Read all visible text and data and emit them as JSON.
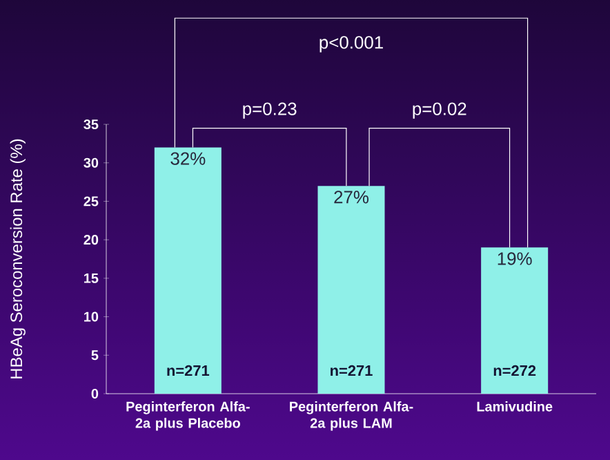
{
  "chart_data": {
    "type": "bar",
    "ylabel": "HBeAg Seroconversion Rate (%)",
    "categories": [
      "Peginterferon Alfa-2a plus Placebo",
      "Peginterferon Alfa-2a plus LAM",
      "Lamivudine"
    ],
    "values": [
      32,
      27,
      19
    ],
    "color": "#8ff0e8",
    "value_labels": [
      "32%",
      "27%",
      "19%"
    ],
    "ylim": [
      0,
      35
    ],
    "yticks": [
      0,
      5,
      10,
      15,
      20,
      25,
      30,
      35
    ],
    "grid": false,
    "annotations": [
      "n=271",
      "n=271",
      "n=272",
      "p=0.23",
      "p=0.02",
      "p<0.001"
    ]
  }
}
